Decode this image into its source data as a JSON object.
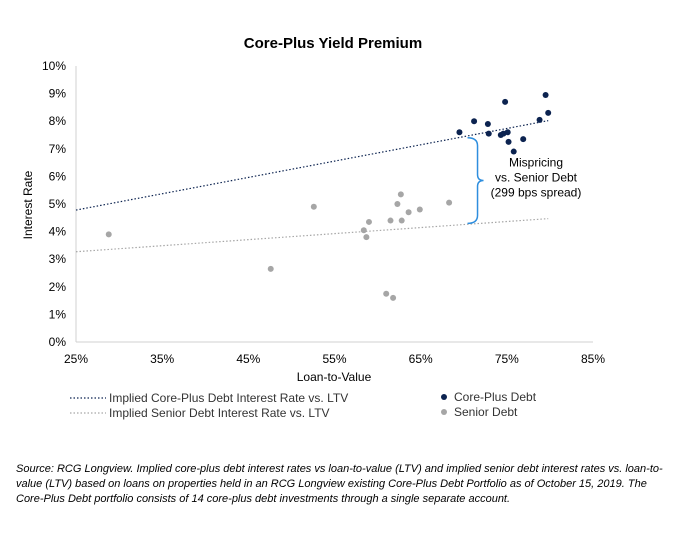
{
  "chart_data": {
    "type": "scatter",
    "title": "Core-Plus Yield Premium",
    "xlabel": "Loan-to-Value",
    "ylabel": "Interest Rate",
    "xlim": [
      25,
      85
    ],
    "ylim": [
      0,
      10
    ],
    "x_ticks": [
      25,
      35,
      45,
      55,
      65,
      75,
      85
    ],
    "x_tick_labels": [
      "25%",
      "35%",
      "45%",
      "55%",
      "65%",
      "75%",
      "85%"
    ],
    "y_ticks": [
      0,
      1,
      2,
      3,
      4,
      5,
      6,
      7,
      8,
      9,
      10
    ],
    "y_tick_labels": [
      "0%",
      "1%",
      "2%",
      "3%",
      "4%",
      "5%",
      "6%",
      "7%",
      "8%",
      "9%",
      "10%"
    ],
    "grid": false,
    "series": [
      {
        "name": "Core-Plus Debt",
        "color": "#0c2350",
        "points": [
          {
            "x": 69.5,
            "y": 7.6
          },
          {
            "x": 71.2,
            "y": 8.0
          },
          {
            "x": 72.8,
            "y": 7.9
          },
          {
            "x": 72.9,
            "y": 7.55
          },
          {
            "x": 74.3,
            "y": 7.5
          },
          {
            "x": 74.6,
            "y": 7.55
          },
          {
            "x": 74.8,
            "y": 8.7
          },
          {
            "x": 75.1,
            "y": 7.6
          },
          {
            "x": 75.2,
            "y": 7.25
          },
          {
            "x": 75.8,
            "y": 6.9
          },
          {
            "x": 76.9,
            "y": 7.35
          },
          {
            "x": 78.8,
            "y": 8.05
          },
          {
            "x": 79.5,
            "y": 8.95
          },
          {
            "x": 79.8,
            "y": 8.3
          }
        ]
      },
      {
        "name": "Senior Debt",
        "color": "#a6a6a6",
        "points": [
          {
            "x": 28.8,
            "y": 3.9
          },
          {
            "x": 47.6,
            "y": 2.65
          },
          {
            "x": 52.6,
            "y": 4.9
          },
          {
            "x": 58.4,
            "y": 4.05
          },
          {
            "x": 58.7,
            "y": 3.8
          },
          {
            "x": 59.0,
            "y": 4.35
          },
          {
            "x": 61.0,
            "y": 1.75
          },
          {
            "x": 61.5,
            "y": 4.4
          },
          {
            "x": 61.8,
            "y": 1.6
          },
          {
            "x": 62.3,
            "y": 5.0
          },
          {
            "x": 62.7,
            "y": 5.35
          },
          {
            "x": 62.8,
            "y": 4.4
          },
          {
            "x": 63.6,
            "y": 4.7
          },
          {
            "x": 64.9,
            "y": 4.8
          },
          {
            "x": 68.3,
            "y": 5.05
          }
        ]
      }
    ],
    "trendlines": [
      {
        "name": "Implied Core-Plus Debt Interest Rate vs. LTV",
        "color": "#0c2350",
        "x": [
          25,
          79.8
        ],
        "y": [
          4.78,
          8.02
        ]
      },
      {
        "name": "Implied Senior Debt Interest Rate vs. LTV",
        "color": "#a6a6a6",
        "x": [
          25,
          79.8
        ],
        "y": [
          3.27,
          4.47
        ]
      }
    ],
    "annotation": {
      "lines": [
        "Mispricing",
        "vs. Senior Debt",
        "(299 bps spread)"
      ],
      "x": 71.6,
      "y_top": 7.4,
      "y_bottom": 4.3,
      "color": "#2e8ede"
    },
    "legend_placement": "bottom"
  },
  "source_note": "Source: RCG Longview. Implied core-plus debt interest rates vs loan-to-value (LTV) and implied senior debt interest rates vs. loan-to-value (LTV) based on loans on properties held in an RCG Longview existing Core-Plus Debt Portfolio as of October 15, 2019. The Core-Plus Debt portfolio consists of 14 core-plus debt investments through a single separate account."
}
